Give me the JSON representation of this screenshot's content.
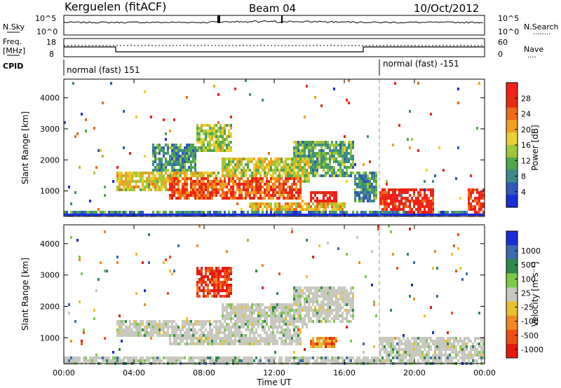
{
  "header": {
    "station": "Kerguelen (fitACF)",
    "beam": "Beam 04",
    "date": "10/Oct/2012"
  },
  "noise_panel": {
    "left_label": "N.Sky",
    "right_label": "N.Search",
    "right_legend": "........",
    "left_ticks": [
      "10^5",
      "10^0"
    ],
    "right_ticks": [
      "10^5",
      "10^0"
    ]
  },
  "freq_panel": {
    "left_label_1": "Freq.",
    "left_label_2": "[MHz]",
    "right_label": "Nave",
    "right_legend": "....",
    "left_ticks": [
      "18",
      "8"
    ],
    "right_ticks": [
      "60",
      "0"
    ]
  },
  "cpid_panel": {
    "label": "CPID",
    "segments": [
      {
        "text": "normal (fast) 151",
        "start_hour": 0
      },
      {
        "text": "normal (fast) -151",
        "start_hour": 18
      }
    ]
  },
  "time_axis": {
    "label": "Time UT",
    "ticks": [
      "00:00",
      "04:00",
      "08:00",
      "12:00",
      "16:00",
      "20:00",
      "00:00"
    ]
  },
  "chart_data": [
    {
      "type": "heatmap",
      "name": "power",
      "xlabel": "Time UT",
      "ylabel": "Slant Range [km]",
      "x_range_hours": [
        0,
        24
      ],
      "ylim": [
        180,
        4600
      ],
      "y_ticks": [
        1000,
        2000,
        3000,
        4000
      ],
      "marker_hour": 18,
      "colorbar": {
        "title": "Power [dB]",
        "ticks": [
          "4",
          "8",
          "12",
          "16",
          "20",
          "24",
          "28"
        ],
        "colors": [
          "#1a2dd6",
          "#2f5ab8",
          "#3d8a8f",
          "#4fa84a",
          "#9ec83a",
          "#e8d030",
          "#f0a020",
          "#f06a18",
          "#e82a10",
          "#f4201a"
        ]
      },
      "echo_bands": [
        {
          "t0": 3.0,
          "t1": 9.0,
          "r0": 1050,
          "r1": 1650,
          "level": 0.55
        },
        {
          "t0": 6.0,
          "t1": 13.5,
          "r0": 800,
          "r1": 1500,
          "level": 0.8
        },
        {
          "t0": 9.0,
          "t1": 14.0,
          "r0": 1300,
          "r1": 2100,
          "level": 0.5
        },
        {
          "t0": 13.0,
          "t1": 16.5,
          "r0": 1500,
          "r1": 2700,
          "level": 0.35
        },
        {
          "t0": 5.0,
          "t1": 7.5,
          "r0": 1500,
          "r1": 2600,
          "level": 0.3
        },
        {
          "t0": 7.5,
          "t1": 9.5,
          "r0": 2300,
          "r1": 3200,
          "level": 0.45
        },
        {
          "t0": 10.5,
          "t1": 16.0,
          "r0": 400,
          "r1": 700,
          "level": 0.6
        },
        {
          "t0": 14.0,
          "t1": 15.5,
          "r0": 700,
          "r1": 1050,
          "level": 0.95
        },
        {
          "t0": 16.5,
          "t1": 17.8,
          "r0": 700,
          "r1": 1700,
          "level": 0.3
        },
        {
          "t0": 18.0,
          "t1": 21.0,
          "r0": 450,
          "r1": 1100,
          "level": 0.9
        },
        {
          "t0": 19.5,
          "t1": 21.0,
          "r0": 300,
          "r1": 700,
          "level": 0.95
        },
        {
          "t0": 23.0,
          "t1": 24.0,
          "r0": 250,
          "r1": 1100,
          "level": 0.9
        },
        {
          "t0": 0.0,
          "t1": 24.0,
          "r0": 180,
          "r1": 420,
          "level": 0.25
        }
      ]
    },
    {
      "type": "heatmap",
      "name": "velocity",
      "xlabel": "Time UT",
      "ylabel": "Slant Range [km]",
      "x_range_hours": [
        0,
        24
      ],
      "ylim": [
        180,
        4600
      ],
      "y_ticks": [
        1000,
        2000,
        3000,
        4000
      ],
      "marker_hour": 18,
      "colorbar": {
        "title": "Velocity  [m s⁻¹]",
        "ticks": [
          "1000",
          "500",
          "100",
          "25",
          "-25",
          "-100",
          "-500",
          "-1000"
        ],
        "colors": [
          "#1a2dd6",
          "#3a6ab0",
          "#2e8a4a",
          "#7cc84a",
          "#c8c8c0",
          "#e8c030",
          "#f08a20",
          "#f05018",
          "#e81a10"
        ]
      },
      "echo_bands": [
        {
          "t0": 3.0,
          "t1": 9.0,
          "r0": 1050,
          "r1": 1650,
          "level": 0.45
        },
        {
          "t0": 6.0,
          "t1": 13.5,
          "r0": 800,
          "r1": 1500,
          "level": 0.45
        },
        {
          "t0": 9.0,
          "t1": 14.0,
          "r0": 1300,
          "r1": 2100,
          "level": 0.45
        },
        {
          "t0": 13.0,
          "t1": 16.5,
          "r0": 1500,
          "r1": 2700,
          "level": 0.45
        },
        {
          "t0": 7.5,
          "t1": 9.5,
          "r0": 2300,
          "r1": 3300,
          "level": 0.9
        },
        {
          "t0": 14.0,
          "t1": 15.5,
          "r0": 700,
          "r1": 1050,
          "level": 0.75
        },
        {
          "t0": 18.0,
          "t1": 24.0,
          "r0": 450,
          "r1": 1100,
          "level": 0.45
        },
        {
          "t0": 0.0,
          "t1": 24.0,
          "r0": 180,
          "r1": 420,
          "level": 0.3
        }
      ]
    }
  ]
}
